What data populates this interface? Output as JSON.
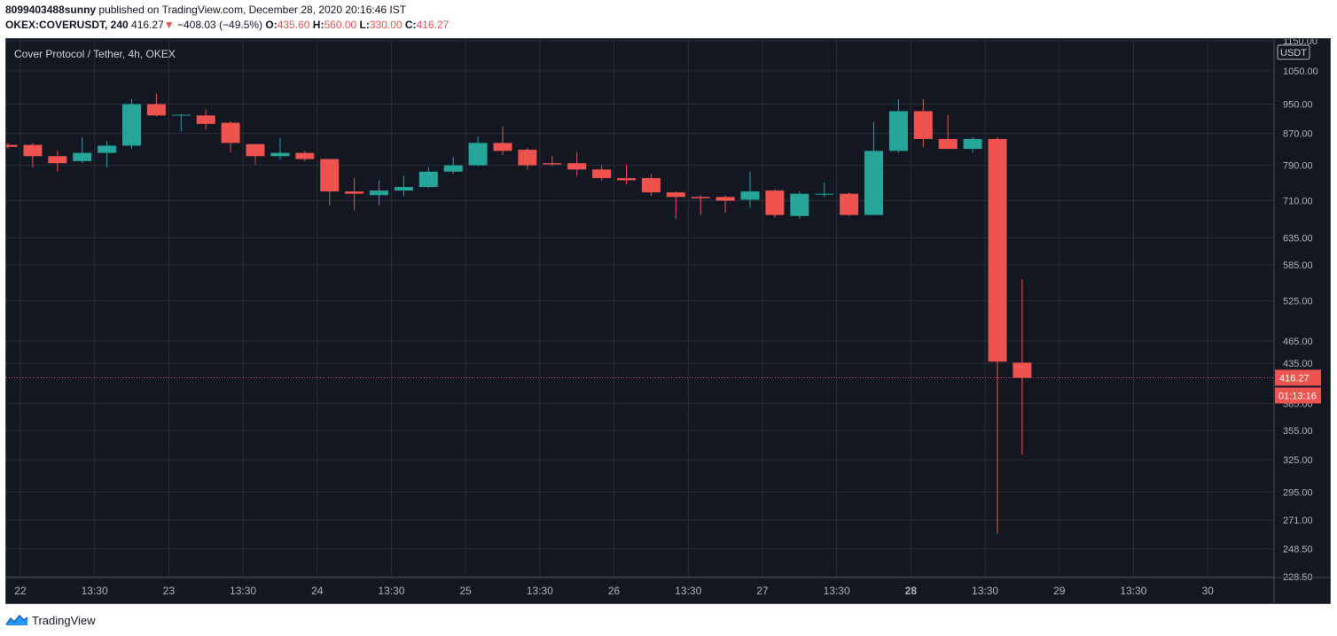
{
  "header": {
    "author": "8099403488sunny",
    "published_text": " published on TradingView.com, December 28, 2020 20:16:46 IST",
    "symbol": "OKEX:COVERUSDT, 240",
    "last_price": "416.27",
    "change_arrow": "▼",
    "change": "−408.03 (−49.5%)",
    "open_label": "O:",
    "open": "435.60",
    "high_label": "H:",
    "high": "560.00",
    "low_label": "L:",
    "low": "330.00",
    "close_label": "C:",
    "close": "416.27"
  },
  "footer": {
    "brand": "TradingView"
  },
  "chart_data": {
    "type": "candlestick",
    "title": "Cover Protocol / Tether, 4h, OKEX",
    "currency_label": "USDT",
    "last_price_label": "416.27",
    "countdown_label": "01:13:16",
    "y_scale": "log",
    "grid": true,
    "colors": {
      "up": "#26a69a",
      "down": "#ef5350",
      "background": "#131722",
      "grid": "#2a2e39",
      "text": "#b2b5be"
    },
    "y_ticks": [
      {
        "value": 228.5,
        "label": "228.50"
      },
      {
        "value": 248.5,
        "label": "248.50"
      },
      {
        "value": 271,
        "label": "271.00"
      },
      {
        "value": 295,
        "label": "295.00"
      },
      {
        "value": 325,
        "label": "325.00"
      },
      {
        "value": 355,
        "label": "355.00"
      },
      {
        "value": 385,
        "label": "385.00"
      },
      {
        "value": 435,
        "label": "435.00"
      },
      {
        "value": 465,
        "label": "465.00"
      },
      {
        "value": 525,
        "label": "525.00"
      },
      {
        "value": 585,
        "label": "585.00"
      },
      {
        "value": 635,
        "label": "635.00"
      },
      {
        "value": 710,
        "label": "710.00"
      },
      {
        "value": 790,
        "label": "790.00"
      },
      {
        "value": 870,
        "label": "870.00"
      },
      {
        "value": 950,
        "label": "950.00"
      },
      {
        "value": 1050,
        "label": "1050.00"
      },
      {
        "value": 1150,
        "label": "1150.00"
      }
    ],
    "x_ticks": [
      {
        "index": 0.5,
        "label": "22",
        "bold": false
      },
      {
        "index": 3.5,
        "label": "13:30",
        "bold": false
      },
      {
        "index": 6.5,
        "label": "23",
        "bold": false
      },
      {
        "index": 9.5,
        "label": "13:30",
        "bold": false
      },
      {
        "index": 12.5,
        "label": "24",
        "bold": false
      },
      {
        "index": 15.5,
        "label": "13:30",
        "bold": false
      },
      {
        "index": 18.5,
        "label": "25",
        "bold": false
      },
      {
        "index": 21.5,
        "label": "13:30",
        "bold": false
      },
      {
        "index": 24.5,
        "label": "26",
        "bold": false
      },
      {
        "index": 27.5,
        "label": "13:30",
        "bold": false
      },
      {
        "index": 30.5,
        "label": "27",
        "bold": false
      },
      {
        "index": 33.5,
        "label": "13:30",
        "bold": false
      },
      {
        "index": 36.5,
        "label": "28",
        "bold": true
      },
      {
        "index": 39.5,
        "label": "13:30",
        "bold": false
      },
      {
        "index": 42.5,
        "label": "29",
        "bold": false
      },
      {
        "index": 45.5,
        "label": "13:30",
        "bold": false
      },
      {
        "index": 48.5,
        "label": "30",
        "bold": false
      }
    ],
    "candles": [
      {
        "o": 840,
        "h": 845,
        "l": 830,
        "c": 835
      },
      {
        "o": 840,
        "h": 845,
        "l": 785,
        "c": 812
      },
      {
        "o": 812,
        "h": 825,
        "l": 775,
        "c": 795
      },
      {
        "o": 800,
        "h": 860,
        "l": 795,
        "c": 820
      },
      {
        "o": 820,
        "h": 850,
        "l": 785,
        "c": 838
      },
      {
        "o": 838,
        "h": 965,
        "l": 830,
        "c": 950
      },
      {
        "o": 950,
        "h": 980,
        "l": 915,
        "c": 918
      },
      {
        "o": 920,
        "h": 922,
        "l": 875,
        "c": 920
      },
      {
        "o": 918,
        "h": 935,
        "l": 880,
        "c": 895
      },
      {
        "o": 898,
        "h": 902,
        "l": 822,
        "c": 845
      },
      {
        "o": 842,
        "h": 842,
        "l": 792,
        "c": 812
      },
      {
        "o": 812,
        "h": 858,
        "l": 805,
        "c": 820
      },
      {
        "o": 820,
        "h": 825,
        "l": 800,
        "c": 805
      },
      {
        "o": 805,
        "h": 805,
        "l": 700,
        "c": 730
      },
      {
        "o": 730,
        "h": 760,
        "l": 690,
        "c": 725
      },
      {
        "o": 722,
        "h": 755,
        "l": 700,
        "c": 732
      },
      {
        "o": 732,
        "h": 765,
        "l": 720,
        "c": 740
      },
      {
        "o": 740,
        "h": 785,
        "l": 738,
        "c": 775
      },
      {
        "o": 775,
        "h": 810,
        "l": 770,
        "c": 790
      },
      {
        "o": 790,
        "h": 862,
        "l": 788,
        "c": 845
      },
      {
        "o": 845,
        "h": 888,
        "l": 815,
        "c": 825
      },
      {
        "o": 828,
        "h": 832,
        "l": 780,
        "c": 790
      },
      {
        "o": 795,
        "h": 812,
        "l": 788,
        "c": 792
      },
      {
        "o": 795,
        "h": 822,
        "l": 765,
        "c": 780
      },
      {
        "o": 780,
        "h": 790,
        "l": 755,
        "c": 760
      },
      {
        "o": 760,
        "h": 790,
        "l": 745,
        "c": 755
      },
      {
        "o": 760,
        "h": 770,
        "l": 720,
        "c": 728
      },
      {
        "o": 728,
        "h": 730,
        "l": 672,
        "c": 718
      },
      {
        "o": 718,
        "h": 722,
        "l": 680,
        "c": 715
      },
      {
        "o": 718,
        "h": 722,
        "l": 685,
        "c": 710
      },
      {
        "o": 712,
        "h": 775,
        "l": 695,
        "c": 730
      },
      {
        "o": 732,
        "h": 735,
        "l": 675,
        "c": 680
      },
      {
        "o": 678,
        "h": 730,
        "l": 672,
        "c": 725
      },
      {
        "o": 725,
        "h": 750,
        "l": 718,
        "c": 725
      },
      {
        "o": 725,
        "h": 728,
        "l": 678,
        "c": 680
      },
      {
        "o": 680,
        "h": 900,
        "l": 680,
        "c": 825
      },
      {
        "o": 825,
        "h": 965,
        "l": 820,
        "c": 930
      },
      {
        "o": 930,
        "h": 965,
        "l": 835,
        "c": 855
      },
      {
        "o": 855,
        "h": 920,
        "l": 830,
        "c": 830
      },
      {
        "o": 830,
        "h": 860,
        "l": 820,
        "c": 855
      },
      {
        "o": 855,
        "h": 860,
        "l": 260,
        "c": 437
      },
      {
        "o": 435.6,
        "h": 560,
        "l": 330,
        "c": 416.27
      }
    ]
  }
}
